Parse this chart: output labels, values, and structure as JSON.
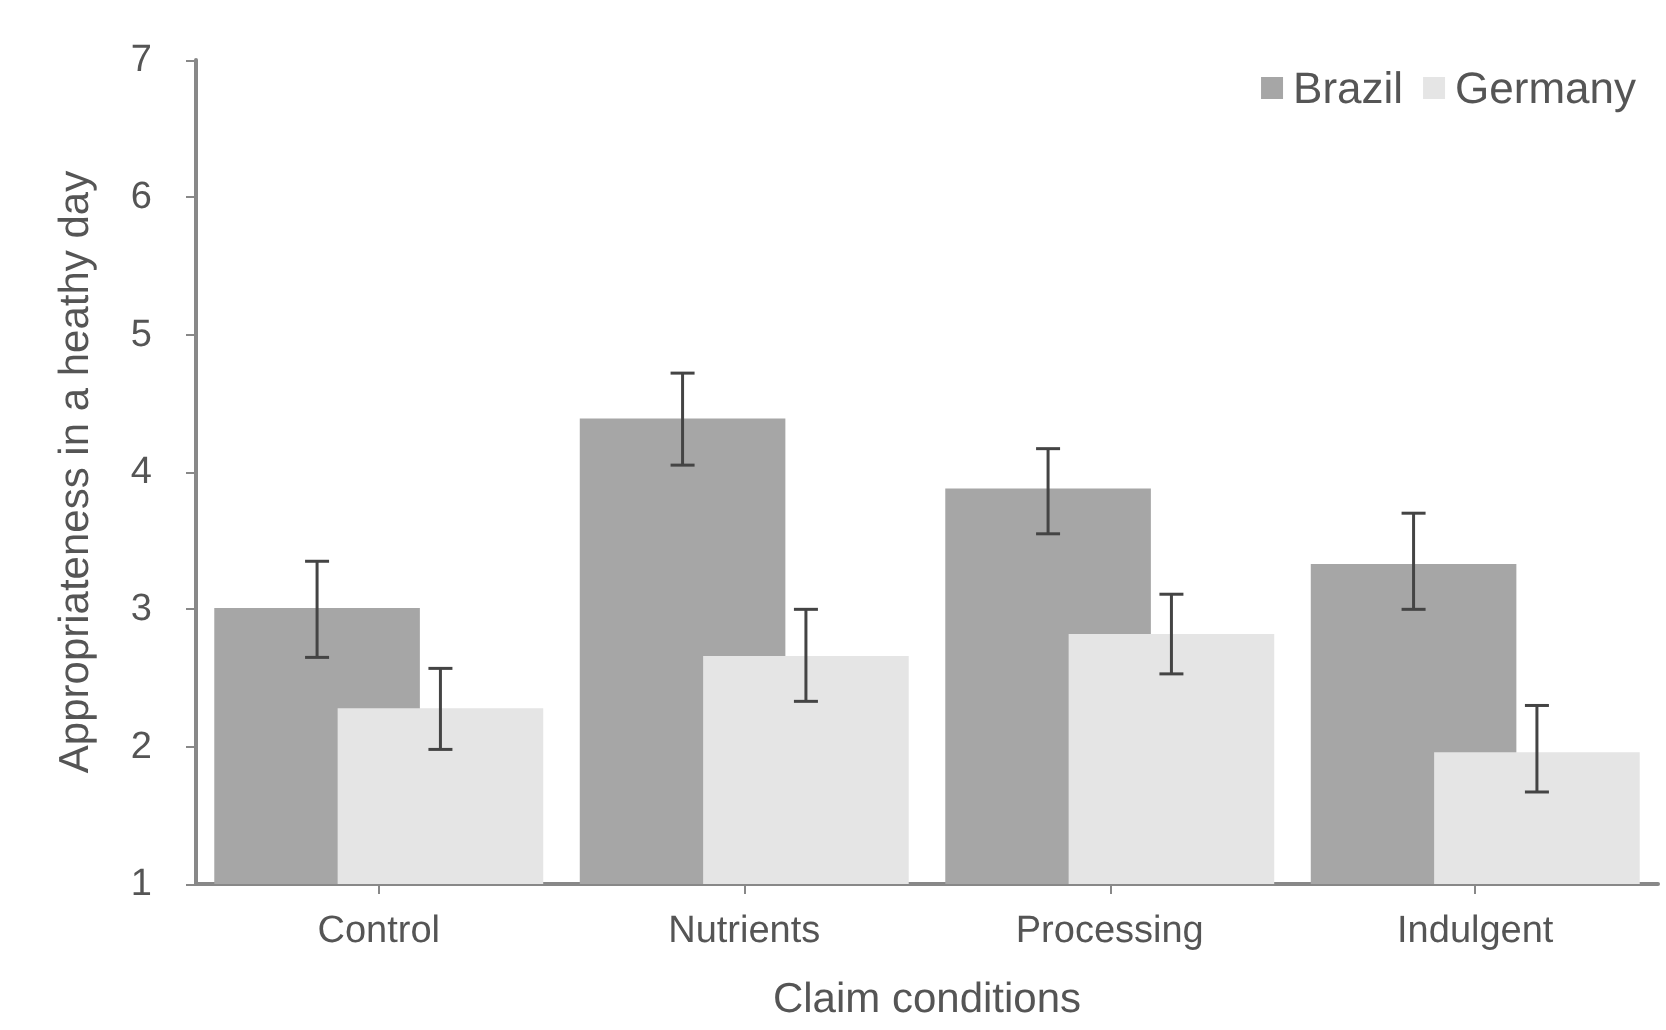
{
  "chart_data": {
    "type": "bar",
    "xlabel": "Claim conditions",
    "ylabel": "Appropriateness in a heathy day",
    "categories": [
      "Control",
      "Nutrients",
      "Processing",
      "Indulgent"
    ],
    "series": [
      {
        "name": "Brazil",
        "color": "#a6a6a6",
        "values": [
          3.01,
          4.39,
          3.88,
          3.33
        ],
        "errors": [
          [
            2.65,
            3.35
          ],
          [
            4.05,
            4.72
          ],
          [
            3.55,
            4.17
          ],
          [
            3.0,
            3.7
          ]
        ]
      },
      {
        "name": "Germany",
        "color": "#e5e5e5",
        "values": [
          2.28,
          2.66,
          2.82,
          1.96
        ],
        "errors": [
          [
            1.98,
            2.57
          ],
          [
            2.33,
            3.0
          ],
          [
            2.53,
            3.11
          ],
          [
            1.67,
            2.3
          ]
        ]
      }
    ],
    "ylim": [
      1,
      7
    ],
    "yticks": [
      1,
      2,
      3,
      4,
      5,
      6,
      7
    ],
    "grid": false,
    "legend": "top right"
  }
}
